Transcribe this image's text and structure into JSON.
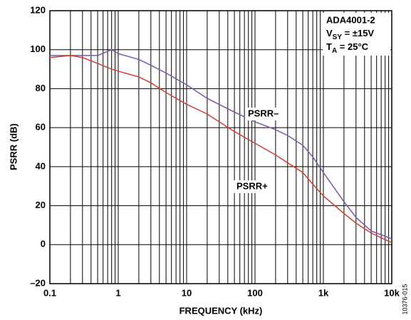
{
  "chart_data": {
    "type": "line",
    "x_label": "FREQUENCY (kHz)",
    "y_label": "PSRR (dB)",
    "annotation": {
      "device": "ADA4001-2",
      "supply": {
        "symbol": "V",
        "subscript": "SY",
        "text": " = ±15V"
      },
      "temperature": {
        "symbol": "T",
        "subscript": "A",
        "text": " = 25°C"
      }
    },
    "figure_id": "10376-015",
    "x_scale": "log",
    "grid": true,
    "minor_grid": true,
    "xlim": [
      0.1,
      10000
    ],
    "xticks": [
      0.1,
      1,
      10,
      100,
      {
        "value": 1000,
        "label": "1k"
      },
      {
        "value": 10000,
        "label": "10k"
      }
    ],
    "ylim": [
      -20,
      120
    ],
    "yticks": [
      {
        "value": -20,
        "label": "–20"
      },
      0,
      20,
      40,
      60,
      80,
      100,
      120
    ],
    "x": [
      0.1,
      0.2,
      0.3,
      0.5,
      0.8,
      1,
      2,
      3,
      5,
      10,
      20,
      50,
      100,
      200,
      300,
      500,
      700,
      1000,
      2000,
      3000,
      5000,
      10000
    ],
    "series": [
      {
        "name": "PSRR–",
        "color": "#7d55a8",
        "values": [
          97,
          97,
          97,
          97,
          100,
          98,
          95,
          92,
          88,
          82,
          75,
          68,
          63,
          59,
          56,
          51,
          45,
          37,
          22,
          14,
          7,
          3
        ]
      },
      {
        "name": "PSRR+",
        "color": "#d23c32",
        "values": [
          96,
          97,
          96,
          93,
          90,
          89,
          86,
          83,
          78,
          72,
          67,
          58,
          52,
          46,
          42,
          37,
          31,
          25,
          16,
          11,
          6,
          1
        ]
      }
    ]
  }
}
